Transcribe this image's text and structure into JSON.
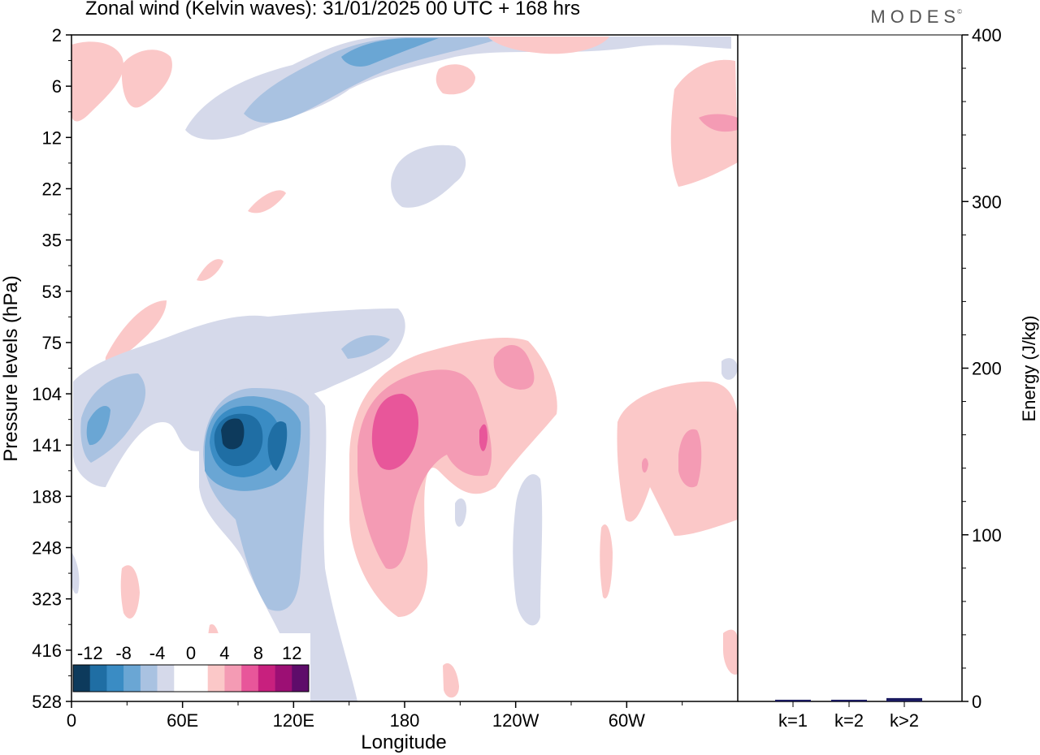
{
  "title": "Zonal wind (Kelvin waves):  31/01/2025  00 UTC  + 168 hrs",
  "brand": "MODES",
  "brand_mark": "©",
  "chart_data": [
    {
      "type": "heatmap",
      "title": "Zonal wind (Kelvin waves):  31/01/2025  00 UTC  + 168 hrs",
      "xlabel": "Longitude",
      "ylabel": "Pressure levels (hPa)",
      "x_ticks": [
        "0",
        "60E",
        "120E",
        "180",
        "120W",
        "60W"
      ],
      "y_ticks": [
        "2",
        "6",
        "12",
        "22",
        "35",
        "53",
        "75",
        "104",
        "141",
        "188",
        "248",
        "323",
        "416",
        "528"
      ],
      "y_scale": "log",
      "colorbar": {
        "labels": [
          "-12",
          "-8",
          "-4",
          "0",
          "4",
          "8",
          "12"
        ],
        "colors": [
          "#0d3a5c",
          "#1f6ea4",
          "#3a8cc4",
          "#6aa6d4",
          "#a9c2e1",
          "#d5d9ea",
          "#ffffff",
          "#ffffff",
          "#fbc8c8",
          "#f49bb4",
          "#e8569a",
          "#c8207e",
          "#9c0f74",
          "#5e0c6a"
        ]
      },
      "features": [
        {
          "label": "-12",
          "lon": 85,
          "hPa": 130
        },
        {
          "label": "8",
          "lon": 178,
          "hPa": 140
        },
        {
          "label": "4",
          "lon": 330,
          "hPa": 145
        }
      ]
    },
    {
      "type": "bar",
      "categories": [
        "k=1",
        "k=2",
        "k>2"
      ],
      "values": [
        1,
        1,
        2
      ],
      "ylabel": "Energy (J/kg)",
      "ylim": [
        0,
        400
      ],
      "y_ticks": [
        0,
        100,
        200,
        300,
        400
      ]
    }
  ],
  "colors": {
    "neg_light": "#d5d9ea",
    "neg_mid": "#a9c2e1",
    "neg_strong": "#6aa6d4",
    "neg_deep": "#3a8cc4",
    "neg_deeper": "#1f6ea4",
    "neg_darkest": "#0d3a5c",
    "pos_light": "#fbc8c8",
    "pos_mid": "#f49bb4",
    "pos_strong": "#e8569a",
    "bar": "#1a1a60"
  }
}
